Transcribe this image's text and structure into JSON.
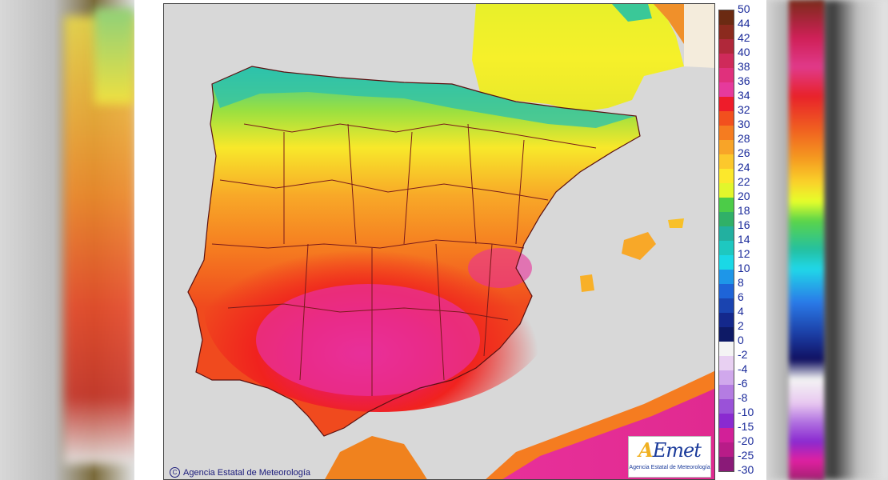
{
  "map": {
    "credit": "Agencia Estatal de Meteorología",
    "logo": {
      "word_a": "A",
      "word_rest": "Emet",
      "sub": "Agencia Estatal de Meteorología"
    }
  },
  "legend": {
    "colors": [
      "#6b2a12",
      "#8b2a1e",
      "#b0283a",
      "#cf2a5a",
      "#e0307c",
      "#e63a9c",
      "#ee1c2a",
      "#f2501e",
      "#f57c20",
      "#f8a428",
      "#fcc82c",
      "#fce82c",
      "#e2f62c",
      "#4ccc48",
      "#30b068",
      "#22b0a0",
      "#1ec8c0",
      "#1ad8e6",
      "#1e96e8",
      "#1e64d8",
      "#1a44b0",
      "#14288c",
      "#0e1a66",
      "#f4f4f4",
      "#e8d0f2",
      "#d0a8ec",
      "#b47ce2",
      "#9a52d8",
      "#8a2ad0",
      "#d22098",
      "#b81c88",
      "#8a1a78"
    ],
    "labels": [
      "50",
      "44",
      "42",
      "40",
      "38",
      "36",
      "34",
      "32",
      "30",
      "28",
      "26",
      "24",
      "22",
      "20",
      "18",
      "16",
      "14",
      "12",
      "10",
      "8",
      "6",
      "4",
      "2",
      "0",
      "-2",
      "-4",
      "-6",
      "-8",
      "-10",
      "-15",
      "-20",
      "-25",
      "-30"
    ]
  }
}
